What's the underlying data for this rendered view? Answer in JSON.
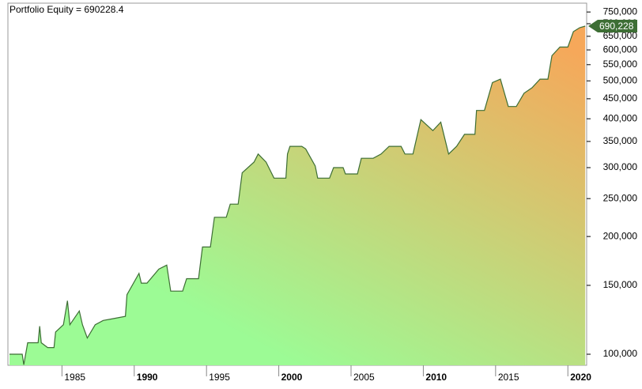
{
  "chart_data": {
    "type": "area",
    "title": "Portfolio Equity = 690228.4",
    "x": [
      1981.37,
      1982.25,
      1982.36,
      1982.63,
      1983.35,
      1983.46,
      1983.57,
      1984.01,
      1984.45,
      1984.56,
      1985.1,
      1985.38,
      1985.55,
      1986.2,
      1986.42,
      1986.75,
      1987.3,
      1987.85,
      1988.4,
      1989.39,
      1989.5,
      1990.33,
      1990.49,
      1990.88,
      1991.7,
      1992.25,
      1992.52,
      1993.35,
      1993.62,
      1994.45,
      1994.72,
      1995.27,
      1995.55,
      1996.37,
      1996.64,
      1997.19,
      1997.47,
      1998.29,
      1998.57,
      1999.12,
      1999.67,
      2000.49,
      2000.6,
      2000.77,
      2001.59,
      2001.86,
      2002.52,
      2002.69,
      2003.51,
      2003.79,
      2004.45,
      2004.61,
      2005.44,
      2005.71,
      2006.53,
      2007.08,
      2007.63,
      2008.46,
      2008.73,
      2009.28,
      2009.83,
      2010.66,
      2011.21,
      2011.75,
      2012.3,
      2012.85,
      2013.57,
      2013.68,
      2014.23,
      2014.78,
      2015.33,
      2015.88,
      2016.43,
      2016.97,
      2017.52,
      2018.07,
      2018.62,
      2018.9,
      2019.45,
      2020.0,
      2020.38,
      2020.82,
      2021.2
    ],
    "values": [
      100000,
      100000,
      94000,
      107000,
      107000,
      118000,
      107000,
      104000,
      104000,
      114000,
      119000,
      137000,
      119000,
      129000,
      119000,
      110000,
      119000,
      122000,
      123000,
      125000,
      142000,
      161000,
      152000,
      152000,
      165000,
      169000,
      145000,
      145000,
      156000,
      156000,
      188000,
      188000,
      224000,
      224000,
      242000,
      242000,
      291000,
      310000,
      325000,
      310000,
      282000,
      282000,
      325000,
      340000,
      340000,
      335000,
      303000,
      282000,
      282000,
      300000,
      300000,
      289000,
      289000,
      317000,
      317000,
      325000,
      340000,
      340000,
      325000,
      325000,
      398000,
      373000,
      392000,
      325000,
      340000,
      365000,
      365000,
      420000,
      420000,
      495000,
      505000,
      430000,
      430000,
      465000,
      480000,
      505000,
      505000,
      580000,
      610000,
      610000,
      668000,
      684000,
      690228.4
    ],
    "color": "#3d6e34",
    "fill_colors": [
      "#9cfb95",
      "#f6a85a"
    ],
    "last_value": 690228.4,
    "last_value_label": "690,228",
    "xlim": [
      1981.26,
      2021.3
    ],
    "xticks": [
      1985,
      1990,
      1995,
      2000,
      2005,
      2010,
      2015,
      2020
    ],
    "xticks_bold": [
      false,
      true,
      false,
      true,
      false,
      true,
      false,
      true
    ],
    "ylim": [
      93700,
      790000
    ],
    "log_scale": true,
    "yticks": [
      {
        "value": 100000,
        "label": "100,000"
      },
      {
        "value": 150000,
        "label": "150,000"
      },
      {
        "value": 200000,
        "label": "200,000"
      },
      {
        "value": 250000,
        "label": "250,000"
      },
      {
        "value": 300000,
        "label": "300,000"
      },
      {
        "value": 350000,
        "label": "350,000"
      },
      {
        "value": 400000,
        "label": "400,000"
      },
      {
        "value": 450000,
        "label": "450,000"
      },
      {
        "value": 500000,
        "label": "500,000"
      },
      {
        "value": 550000,
        "label": "550,000"
      },
      {
        "value": 600000,
        "label": "600,000"
      },
      {
        "value": 650000,
        "label": "650,000"
      },
      {
        "value": 700000,
        "label": "700,000"
      },
      {
        "value": 750000,
        "label": "750,000"
      }
    ]
  }
}
